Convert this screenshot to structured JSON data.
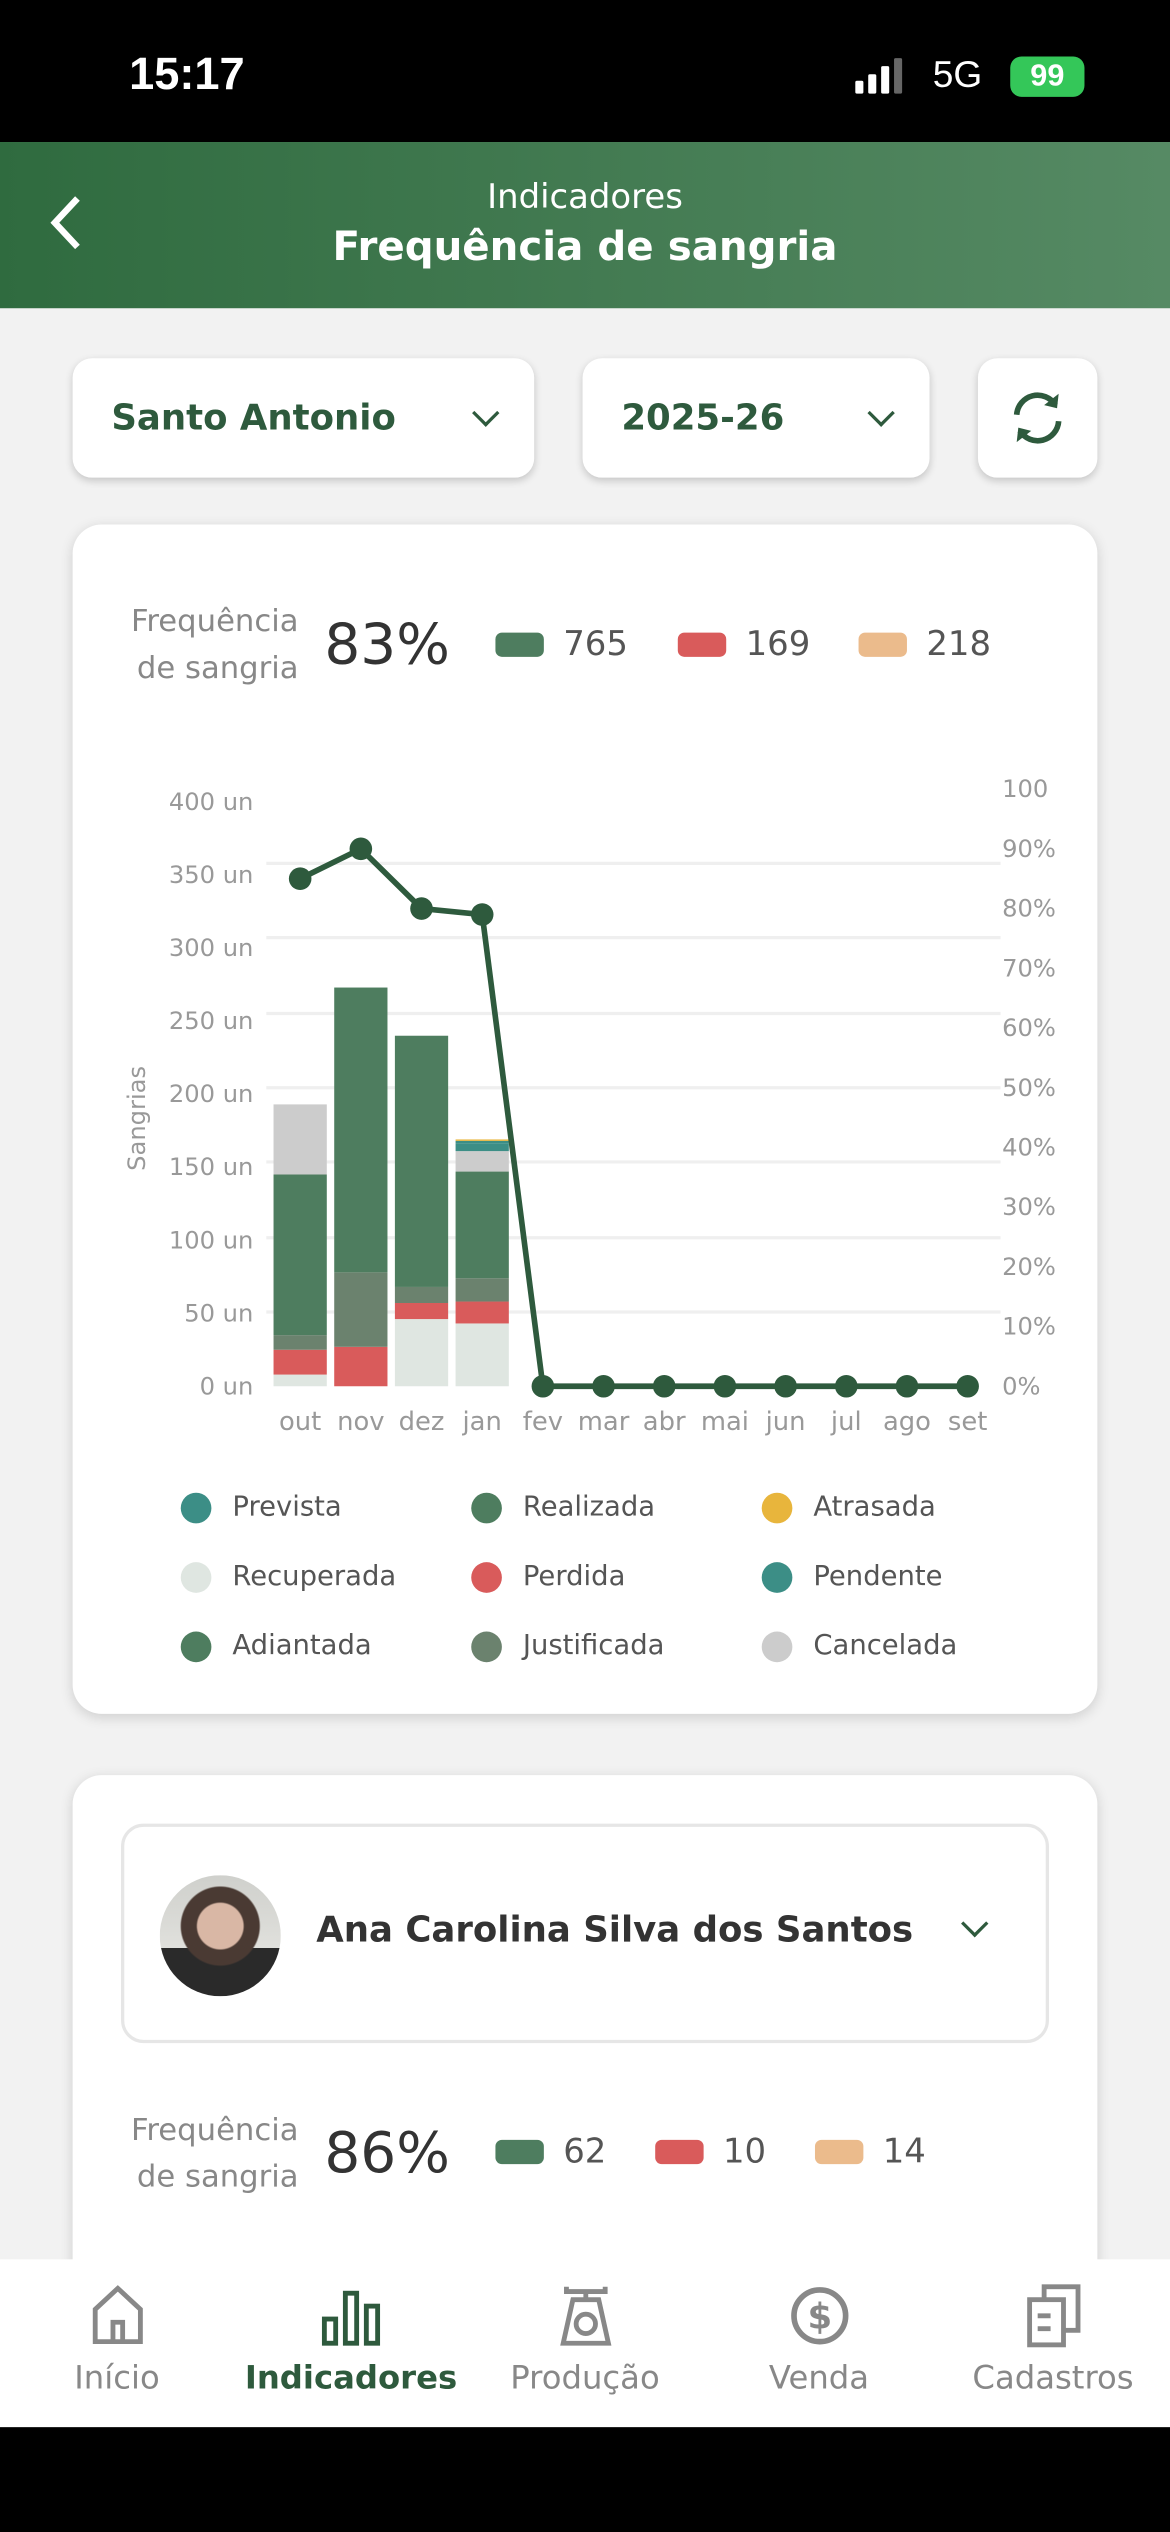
{
  "status_bar": {
    "time": "15:17",
    "network": "5G",
    "battery": "99"
  },
  "header": {
    "back_icon": "chevron-left-icon",
    "subtitle": "Indicadores",
    "title": "Frequência de sangria"
  },
  "filters": {
    "farm": "Santo Antonio",
    "season": "2025-26",
    "refresh_icon": "refresh-icon"
  },
  "summary": {
    "label_line1": "Frequência",
    "label_line2": "de sangria",
    "percent": "83%",
    "counts": [
      {
        "value": "765",
        "color": "#4e7d5f"
      },
      {
        "value": "169",
        "color": "#d95b5b"
      },
      {
        "value": "218",
        "color": "#ebbb8c"
      }
    ]
  },
  "chart_data": {
    "type": "bar+line",
    "ylabel": "Sangrias",
    "y_ticks": [
      "0 un",
      "50 un",
      "100 un",
      "150 un",
      "200 un",
      "250 un",
      "300 un",
      "350 un",
      "400 un"
    ],
    "y2_ticks": [
      "0%",
      "10%",
      "20%",
      "30%",
      "40%",
      "50%",
      "60%",
      "70%",
      "80%",
      "90%",
      "100"
    ],
    "ylim": [
      0,
      400
    ],
    "y2lim": [
      0,
      100
    ],
    "grid": true,
    "categories": [
      "out",
      "nov",
      "dez",
      "jan",
      "fev",
      "mar",
      "abr",
      "mai",
      "jun",
      "jul",
      "ago",
      "set"
    ],
    "series": [
      {
        "name": "Recuperada",
        "color": "#dfe6e1",
        "values": [
          8,
          0,
          46,
          43,
          0,
          0,
          0,
          0,
          0,
          0,
          0,
          0
        ]
      },
      {
        "name": "Perdida",
        "color": "#d95b5b",
        "values": [
          17,
          27,
          11,
          15,
          0,
          0,
          0,
          0,
          0,
          0,
          0,
          0
        ]
      },
      {
        "name": "Justificada",
        "color": "#6b826e",
        "values": [
          10,
          51,
          11,
          16,
          0,
          0,
          0,
          0,
          0,
          0,
          0,
          0
        ]
      },
      {
        "name": "Realizada",
        "color": "#4e7d5f",
        "values": [
          110,
          195,
          172,
          73,
          0,
          0,
          0,
          0,
          0,
          0,
          0,
          0
        ]
      },
      {
        "name": "Cancelada",
        "color": "#cccccc",
        "values": [
          48,
          0,
          0,
          14,
          0,
          0,
          0,
          0,
          0,
          0,
          0,
          0
        ]
      },
      {
        "name": "Prevista",
        "color": "#3c8e86",
        "values": [
          0,
          0,
          0,
          5,
          0,
          0,
          0,
          0,
          0,
          0,
          0,
          0
        ]
      },
      {
        "name": "Pendente",
        "color": "#3c8e86",
        "values": [
          0,
          0,
          0,
          2,
          0,
          0,
          0,
          0,
          0,
          0,
          0,
          0
        ]
      },
      {
        "name": "Atrasada",
        "color": "#e8b53c",
        "values": [
          0,
          0,
          0,
          1,
          0,
          0,
          0,
          0,
          0,
          0,
          0,
          0
        ]
      },
      {
        "name": "Adiantada",
        "color": "#4e7d5f",
        "values": [
          0,
          0,
          0,
          0,
          0,
          0,
          0,
          0,
          0,
          0,
          0,
          0
        ]
      }
    ],
    "line": {
      "axis": "right",
      "color": "#2e5a3d",
      "values": [
        85,
        90,
        80,
        79,
        0,
        0,
        0,
        0,
        0,
        0,
        0,
        0
      ]
    },
    "legend": [
      {
        "label": "Prevista",
        "color": "#3c8e86"
      },
      {
        "label": "Realizada",
        "color": "#4e7d5f"
      },
      {
        "label": "Atrasada",
        "color": "#e8b53c"
      },
      {
        "label": "Recuperada",
        "color": "#dfe6e1"
      },
      {
        "label": "Perdida",
        "color": "#d95b5b"
      },
      {
        "label": "Pendente",
        "color": "#3c8e86"
      },
      {
        "label": "Adiantada",
        "color": "#4e7d5f"
      },
      {
        "label": "Justificada",
        "color": "#6b826e"
      },
      {
        "label": "Cancelada",
        "color": "#cccccc"
      }
    ],
    "legend_position": "bottom"
  },
  "worker": {
    "name": "Ana Carolina Silva dos Santos",
    "label_line1": "Frequência",
    "label_line2": "de sangria",
    "percent": "86%",
    "counts": [
      {
        "value": "62",
        "color": "#4e7d5f"
      },
      {
        "value": "10",
        "color": "#d95b5b"
      },
      {
        "value": "14",
        "color": "#ebbb8c"
      }
    ]
  },
  "nav": {
    "items": [
      {
        "label": "Início",
        "icon": "home-icon"
      },
      {
        "label": "Indicadores",
        "icon": "bar-chart-icon",
        "active": true
      },
      {
        "label": "Produção",
        "icon": "scale-icon"
      },
      {
        "label": "Venda",
        "icon": "dollar-circle-icon"
      },
      {
        "label": "Cadastros",
        "icon": "documents-icon"
      }
    ],
    "active_color": "#2e5a3d"
  }
}
